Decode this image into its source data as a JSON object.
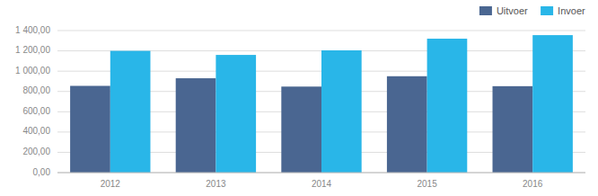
{
  "chart_data": {
    "type": "bar",
    "categories": [
      "2012",
      "2013",
      "2014",
      "2015",
      "2016"
    ],
    "series": [
      {
        "name": "Uitvoer",
        "color": "#4a6691",
        "values": [
          855,
          930,
          848,
          950,
          852
        ]
      },
      {
        "name": "Invoer",
        "color": "#29b6e8",
        "values": [
          1200,
          1160,
          1205,
          1320,
          1355
        ]
      }
    ],
    "ylim": [
      0,
      1400
    ],
    "yticks": [
      {
        "value": 0,
        "label": "0,00"
      },
      {
        "value": 200,
        "label": "200,00"
      },
      {
        "value": 400,
        "label": "400,00"
      },
      {
        "value": 600,
        "label": "600,00"
      },
      {
        "value": 800,
        "label": "800,00"
      },
      {
        "value": 1000,
        "label": "1 000,00"
      },
      {
        "value": 1200,
        "label": "1 200,00"
      },
      {
        "value": 1400,
        "label": "1 400,00"
      }
    ],
    "grid": true,
    "legend": "top-right"
  }
}
